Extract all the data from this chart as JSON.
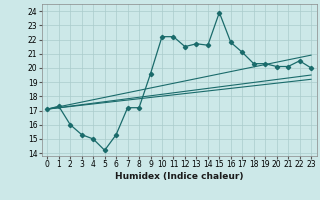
{
  "xlabel": "Humidex (Indice chaleur)",
  "background_color": "#cce8e8",
  "grid_color": "#aacccc",
  "line_color": "#1a6b6b",
  "xlim": [
    -0.5,
    23.5
  ],
  "ylim": [
    13.8,
    24.5
  ],
  "xticks": [
    0,
    1,
    2,
    3,
    4,
    5,
    6,
    7,
    8,
    9,
    10,
    11,
    12,
    13,
    14,
    15,
    16,
    17,
    18,
    19,
    20,
    21,
    22,
    23
  ],
  "yticks": [
    14,
    15,
    16,
    17,
    18,
    19,
    20,
    21,
    22,
    23,
    24
  ],
  "main_x": [
    0,
    1,
    2,
    3,
    4,
    5,
    6,
    7,
    8,
    9,
    10,
    11,
    12,
    13,
    14,
    15,
    16,
    17,
    18,
    19,
    20,
    21,
    22,
    23
  ],
  "main_y": [
    17.1,
    17.3,
    16.0,
    15.3,
    15.0,
    14.2,
    15.3,
    17.2,
    17.2,
    19.6,
    22.2,
    22.2,
    21.5,
    21.7,
    21.6,
    23.9,
    21.8,
    21.1,
    20.3,
    20.3,
    20.1,
    20.1,
    20.5,
    20.0
  ],
  "line1_x": [
    0,
    23
  ],
  "line1_y": [
    17.1,
    20.9
  ],
  "line2_x": [
    0,
    23
  ],
  "line2_y": [
    17.1,
    19.5
  ],
  "line3_x": [
    0,
    23
  ],
  "line3_y": [
    17.1,
    19.2
  ],
  "xlabel_fontsize": 6.5,
  "tick_fontsize": 5.5
}
